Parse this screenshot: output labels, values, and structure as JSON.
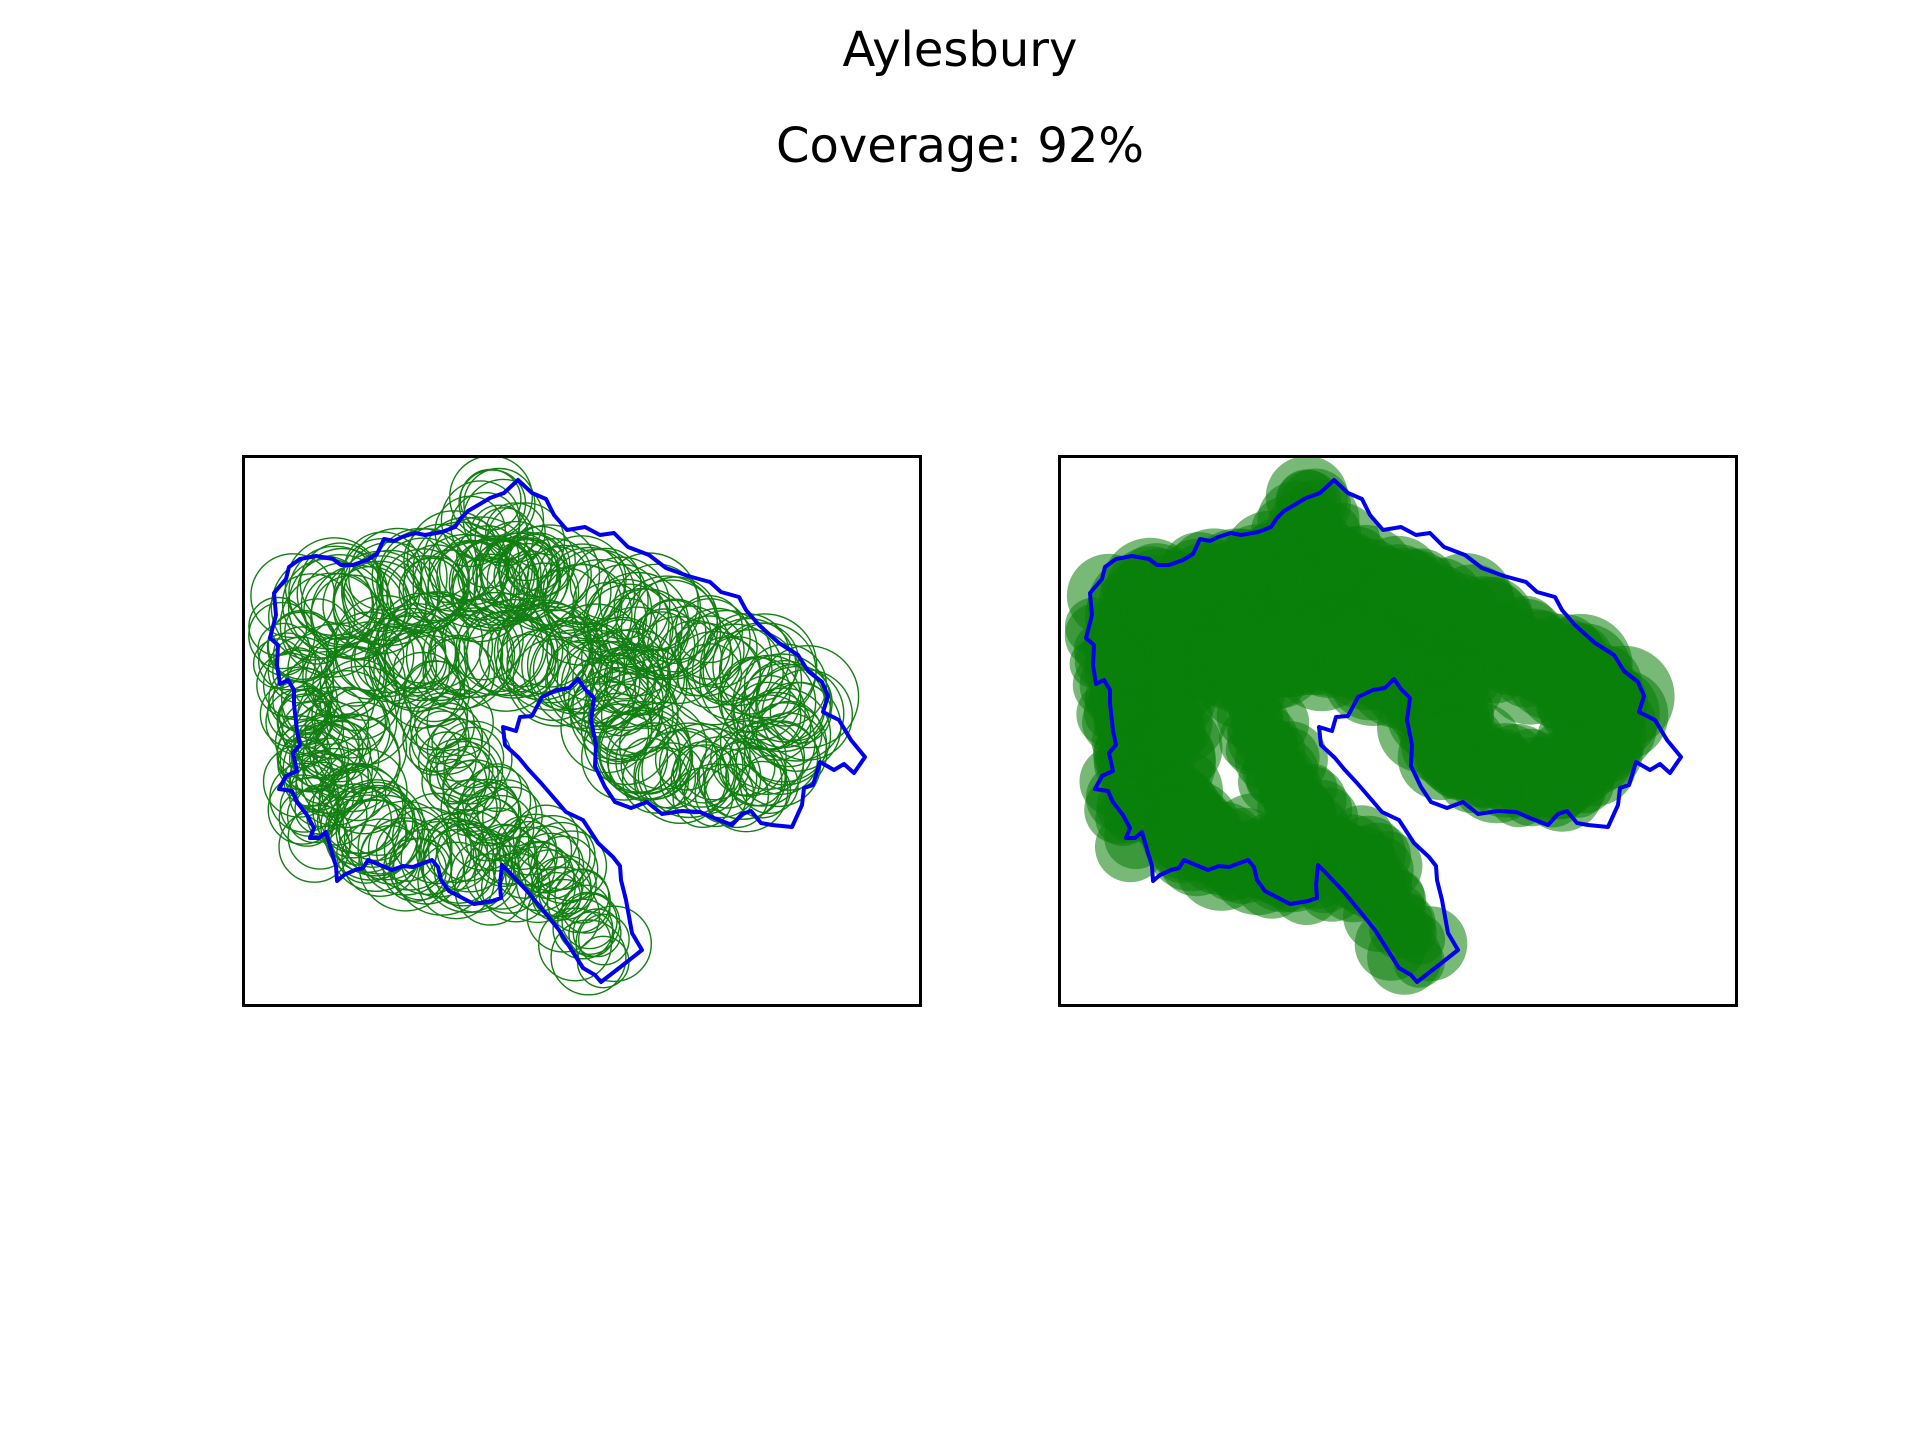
{
  "figure": {
    "title": "Aylesbury",
    "subtitle": "Coverage: 92%"
  },
  "style": {
    "boundary_color": "#0000ee",
    "circle_color": "#137f13",
    "fill_color": "#0a800a",
    "frame_color": "#000000"
  },
  "panels": [
    {
      "name": "outline-circles",
      "mode": "outline"
    },
    {
      "name": "filled-circles",
      "mode": "filled"
    }
  ]
}
